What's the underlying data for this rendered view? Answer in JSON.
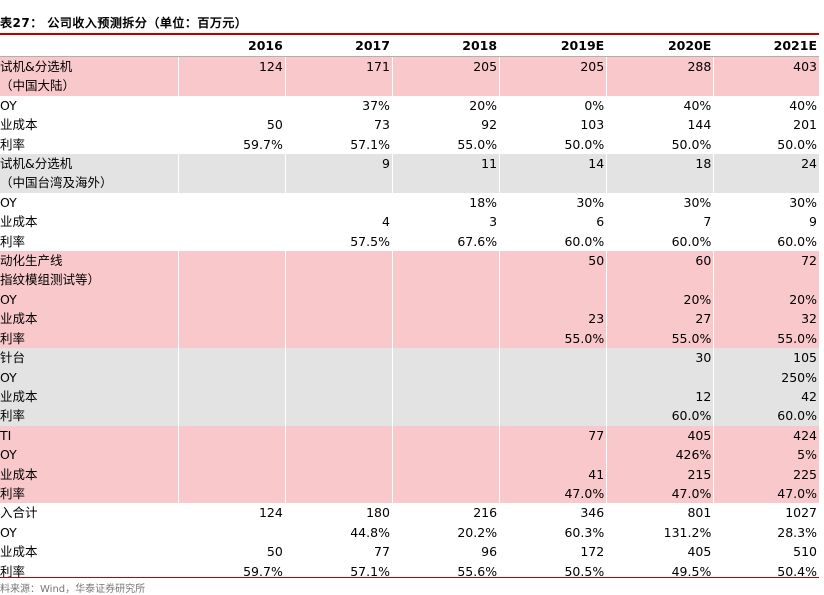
{
  "title": "表27：  公司收入预测拆分（单位：百万元）",
  "columns": [
    "",
    "2016",
    "2017",
    "2018",
    "2019E",
    "2020E",
    "2021E"
  ],
  "rows": [
    {
      "label": "试机&分选机",
      "values": [
        "124",
        "171",
        "205",
        "205",
        "288",
        "403"
      ],
      "bg": "pink"
    },
    {
      "label": "（中国大陆）",
      "values": [
        "",
        "",
        "",
        "",
        "",
        ""
      ],
      "bg": "pink"
    },
    {
      "label": "OY",
      "values": [
        "",
        "37%",
        "20%",
        "0%",
        "40%",
        "40%"
      ],
      "bg": "white"
    },
    {
      "label": "业成本",
      "values": [
        "50",
        "73",
        "92",
        "103",
        "144",
        "201"
      ],
      "bg": "white"
    },
    {
      "label": "利率",
      "values": [
        "59.7%",
        "57.1%",
        "55.0%",
        "50.0%",
        "50.0%",
        "50.0%"
      ],
      "bg": "white"
    },
    {
      "label": "试机&分选机",
      "values": [
        "",
        "9",
        "11",
        "14",
        "18",
        "24"
      ],
      "bg": "gray"
    },
    {
      "label": "（中国台湾及海外）",
      "values": [
        "",
        "",
        "",
        "",
        "",
        ""
      ],
      "bg": "gray"
    },
    {
      "label": "OY",
      "values": [
        "",
        "",
        "18%",
        "30%",
        "30%",
        "30%"
      ],
      "bg": "white"
    },
    {
      "label": "业成本",
      "values": [
        "",
        "4",
        "3",
        "6",
        "7",
        "9"
      ],
      "bg": "white"
    },
    {
      "label": "利率",
      "values": [
        "",
        "57.5%",
        "67.6%",
        "60.0%",
        "60.0%",
        "60.0%"
      ],
      "bg": "white"
    },
    {
      "label": "动化生产线",
      "values": [
        "",
        "",
        "",
        "50",
        "60",
        "72"
      ],
      "bg": "pink"
    },
    {
      "label": "指纹模组测试等）",
      "values": [
        "",
        "",
        "",
        "",
        "",
        ""
      ],
      "bg": "pink"
    },
    {
      "label": "OY",
      "values": [
        "",
        "",
        "",
        "",
        "20%",
        "20%"
      ],
      "bg": "pink"
    },
    {
      "label": "业成本",
      "values": [
        "",
        "",
        "",
        "23",
        "27",
        "32"
      ],
      "bg": "pink"
    },
    {
      "label": "利率",
      "values": [
        "",
        "",
        "",
        "55.0%",
        "55.0%",
        "55.0%"
      ],
      "bg": "pink"
    },
    {
      "label": "针台",
      "values": [
        "",
        "",
        "",
        "",
        "30",
        "105"
      ],
      "bg": "gray"
    },
    {
      "label": "OY",
      "values": [
        "",
        "",
        "",
        "",
        "",
        "250%"
      ],
      "bg": "gray"
    },
    {
      "label": "业成本",
      "values": [
        "",
        "",
        "",
        "",
        "12",
        "42"
      ],
      "bg": "gray"
    },
    {
      "label": "利率",
      "values": [
        "",
        "",
        "",
        "",
        "60.0%",
        "60.0%"
      ],
      "bg": "gray"
    },
    {
      "label": "TI",
      "values": [
        "",
        "",
        "",
        "77",
        "405",
        "424"
      ],
      "bg": "pink"
    },
    {
      "label": "OY",
      "values": [
        "",
        "",
        "",
        "",
        "426%",
        "5%"
      ],
      "bg": "pink"
    },
    {
      "label": "业成本",
      "values": [
        "",
        "",
        "",
        "41",
        "215",
        "225"
      ],
      "bg": "pink"
    },
    {
      "label": "利率",
      "values": [
        "",
        "",
        "",
        "47.0%",
        "47.0%",
        "47.0%"
      ],
      "bg": "pink"
    },
    {
      "label": "入合计",
      "values": [
        "124",
        "180",
        "216",
        "346",
        "801",
        "1027"
      ],
      "bg": "white"
    },
    {
      "label": "OY",
      "values": [
        "",
        "44.8%",
        "20.2%",
        "60.3%",
        "131.2%",
        "28.3%"
      ],
      "bg": "white"
    },
    {
      "label": "业成本",
      "values": [
        "50",
        "77",
        "96",
        "172",
        "405",
        "510"
      ],
      "bg": "white"
    },
    {
      "label": "利率",
      "values": [
        "59.7%",
        "57.1%",
        "55.6%",
        "50.5%",
        "49.5%",
        "50.4%"
      ],
      "bg": "white"
    }
  ],
  "source": "料来源：Wind，华泰证券研究所"
}
